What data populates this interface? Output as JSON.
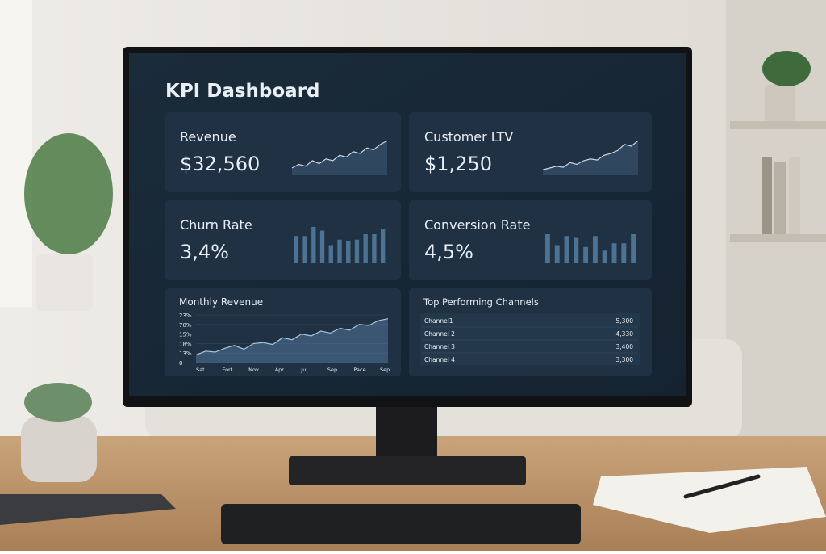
{
  "header": {
    "title": "KPI Dashboard"
  },
  "cards": [
    {
      "label": "Revenue",
      "value": "$32,560",
      "sparkline_type": "line",
      "sparkline": [
        2,
        3,
        2.5,
        4,
        3.2,
        4.5,
        4,
        5.5,
        5,
        6.5,
        6,
        7.5,
        7,
        8.5,
        9.5
      ]
    },
    {
      "label": "Customer LTV",
      "value": "$1,250",
      "sparkline_type": "line",
      "sparkline": [
        1.5,
        2,
        2.5,
        2.2,
        3.5,
        3,
        4,
        4.5,
        4.2,
        5.5,
        6,
        6.8,
        8.5,
        8,
        9.5
      ]
    },
    {
      "label": "Churn Rate",
      "value": "3,4%",
      "sparkline_type": "bar",
      "sparkline": [
        7.5,
        7.5,
        10,
        9,
        5,
        6.5,
        6,
        6.5,
        8,
        8,
        9.5
      ]
    },
    {
      "label": "Conversion Rate",
      "value": "4,5%",
      "sparkline_type": "bar",
      "sparkline": [
        8,
        5,
        7.5,
        7,
        4.5,
        7.5,
        3.5,
        5.5,
        5.5,
        8
      ]
    }
  ],
  "chart_data": {
    "type": "area",
    "title": "Monthly Revenue",
    "color": "#5b86ad",
    "y_labels": [
      "0",
      "13%",
      "18%",
      "15%",
      "70%",
      "23%"
    ],
    "x_labels": [
      "Sat",
      "Fort",
      "Nov",
      "Apr",
      "Jul",
      "Sep",
      "Pace",
      "Sep"
    ],
    "ylim": [
      0,
      5
    ],
    "values": [
      0.8,
      1.2,
      1.1,
      1.5,
      1.8,
      1.4,
      2.0,
      2.1,
      1.9,
      2.6,
      2.4,
      3.0,
      2.8,
      3.3,
      3.1,
      3.6,
      3.4,
      4.0,
      3.9,
      4.4,
      4.6
    ]
  },
  "table": {
    "title": "Top Performing Channels",
    "rows": [
      [
        "Channel1",
        "5,300"
      ],
      [
        "Channel 2",
        "4,330"
      ],
      [
        "Channel 3",
        "3,400"
      ],
      [
        "Channel 4",
        "3,300"
      ]
    ]
  }
}
